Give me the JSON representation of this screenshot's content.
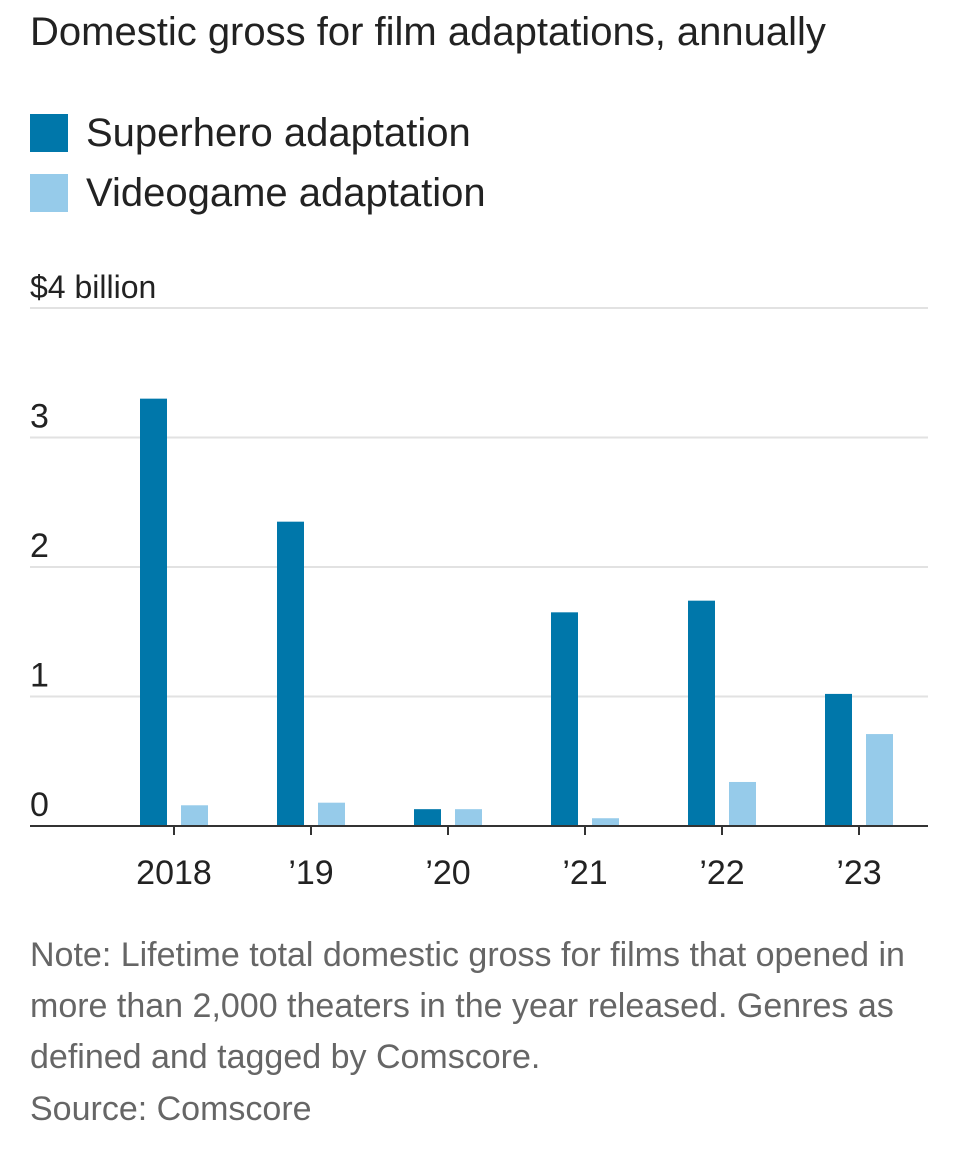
{
  "chart_data": {
    "type": "bar",
    "title": "Domestic gross for film adaptations, annually",
    "categories": [
      "2018",
      "’19",
      "’20",
      "’21",
      "’22",
      "’23"
    ],
    "series": [
      {
        "name": "Superhero adaptation",
        "color": "#0077aa",
        "values": [
          3.3,
          2.35,
          0.13,
          1.65,
          1.74,
          1.02
        ]
      },
      {
        "name": "Videogame adaptation",
        "color": "#96cbea",
        "values": [
          0.16,
          0.18,
          0.13,
          0.06,
          0.34,
          0.71
        ]
      }
    ],
    "ylim": [
      0,
      4
    ],
    "yticks": [
      0,
      1,
      2,
      3,
      4
    ],
    "ytick_labels": [
      "0",
      "1",
      "2",
      "3",
      "$4 billion"
    ],
    "xlabel": "",
    "ylabel": "",
    "grid": true,
    "legend_position": "top-left"
  },
  "note": "Note: Lifetime total domestic gross for films that opened in more than 2,000 theaters in the year released. Genres as defined and tagged by Comscore.",
  "source": "Source: Comscore"
}
